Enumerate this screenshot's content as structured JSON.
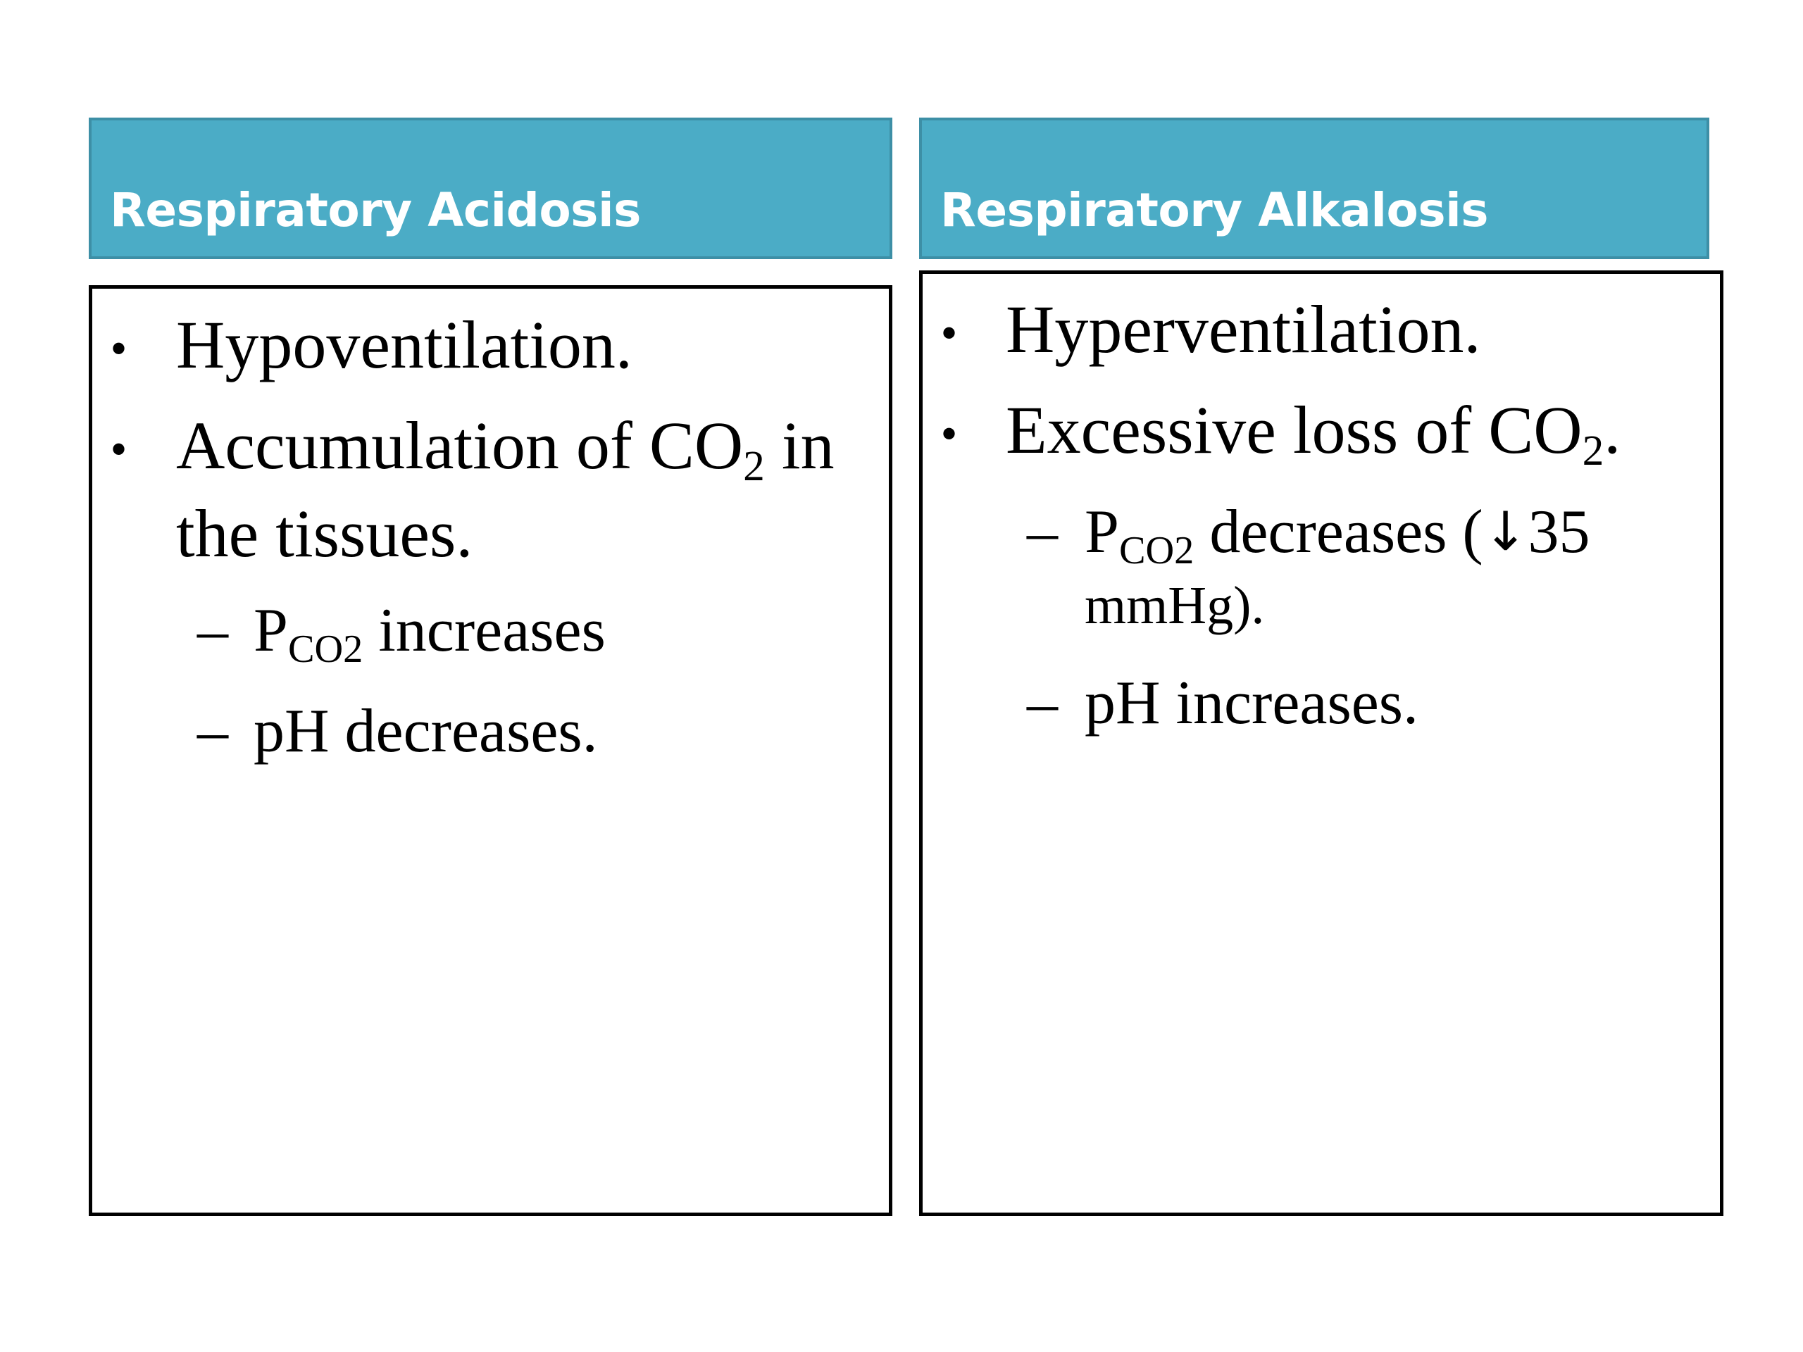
{
  "colors": {
    "header_fill": "#4bacc6",
    "header_border": "#3d8fa6",
    "header_text": "#ffffff",
    "box_border": "#000000",
    "text": "#000000"
  },
  "left": {
    "title": "Respiratory Acidosis",
    "bullets": [
      "Hypoventilation.",
      "Accumulation of CO",
      "2",
      " in",
      "the tissues."
    ],
    "sub_items": [
      {
        "dash": "–",
        "prefix": "P",
        "subscript": "CO2",
        "suffix": " increases"
      },
      {
        "dash": "–",
        "text": "pH decreases."
      }
    ]
  },
  "right": {
    "title": "Respiratory Alkalosis",
    "bullets": [
      "Hyperventilation.",
      "Excessive loss of CO",
      "2",
      "."
    ],
    "sub_items": [
      {
        "dash": "–",
        "prefix": "P",
        "subscript": "CO2",
        "suffix": " decreases (",
        "arrow": "↓",
        "value": "35",
        "continuation": "mmHg)."
      },
      {
        "dash": "–",
        "text": "pH increases."
      }
    ]
  },
  "bullet_glyph": "•"
}
